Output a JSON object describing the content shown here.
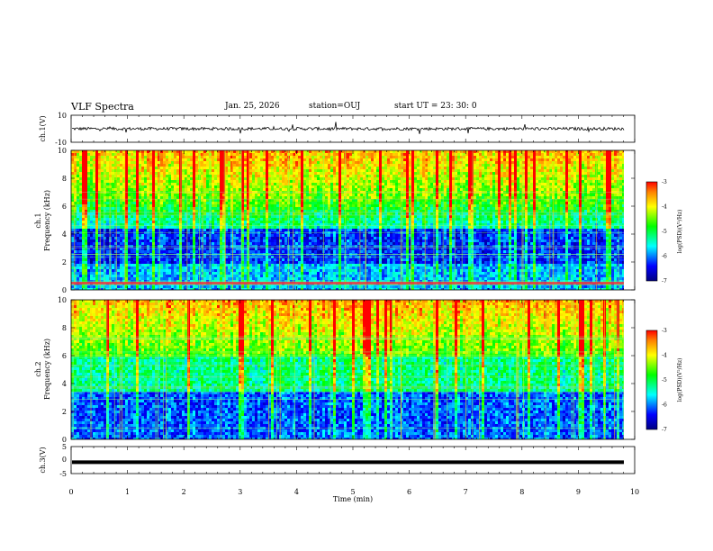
{
  "header": {
    "title": "VLF Spectra",
    "date": "Jan. 25, 2026",
    "station": "station=OUJ",
    "start": "start  UT  =   23: 30: 0"
  },
  "chart_data": [
    {
      "type": "line",
      "panel": "ch1-waveform",
      "ylabel": "ch.1(V)",
      "ylim": [
        -10,
        10
      ],
      "yticks": [
        "10",
        "-10"
      ],
      "xlim": [
        0,
        10
      ],
      "baseline": 0
    },
    {
      "type": "heatmap",
      "panel": "ch1-spectrogram",
      "ylabel_line1": "ch.1",
      "ylabel_line2": "Frequency (kHz)",
      "ylim": [
        0,
        10
      ],
      "yticks": [
        "0",
        "2",
        "4",
        "6",
        "8",
        "10"
      ],
      "xlim": [
        0,
        10
      ],
      "colorbar": {
        "label": "log(PSD)(V²/Hz)",
        "range": [
          -7,
          -3
        ],
        "ticks": [
          "-3",
          "-4",
          "-5",
          "-6",
          "-7"
        ]
      }
    },
    {
      "type": "heatmap",
      "panel": "ch2-spectrogram",
      "ylabel_line1": "ch.2",
      "ylabel_line2": "Frequency (kHz)",
      "ylim": [
        0,
        10
      ],
      "yticks": [
        "0",
        "2",
        "4",
        "6",
        "8",
        "10"
      ],
      "xlim": [
        0,
        10
      ],
      "colorbar": {
        "label": "log(PSD)(V²/Hz)",
        "range": [
          -7,
          -3
        ],
        "ticks": [
          "-3",
          "-4",
          "-5",
          "-6",
          "-7"
        ]
      }
    },
    {
      "type": "line",
      "panel": "ch3-waveform",
      "ylabel": "ch.3(V)",
      "ylim": [
        -5,
        5
      ],
      "yticks": [
        "5",
        "0",
        "-5"
      ],
      "xlim": [
        0,
        10
      ],
      "baseline": -0.8
    }
  ],
  "xaxis": {
    "label": "Time  (min)",
    "ticks": [
      "0",
      "1",
      "2",
      "3",
      "4",
      "5",
      "6",
      "7",
      "8",
      "9",
      "10"
    ]
  }
}
